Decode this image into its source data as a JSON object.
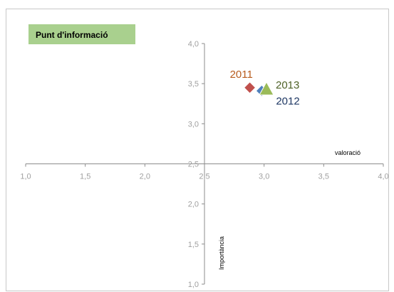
{
  "chart_data": {
    "type": "scatter",
    "title": "Punt d'informació",
    "xlabel": "valoració",
    "ylabel": "Importància",
    "xlim": [
      1.0,
      4.0
    ],
    "ylim": [
      1.0,
      4.0
    ],
    "x_ticks": [
      "1,0",
      "1,5",
      "2,0",
      "2,5",
      "3,0",
      "3,5",
      "4,0"
    ],
    "y_ticks": [
      "1,0",
      "1,5",
      "2,0",
      "2,5",
      "3,0",
      "3,5",
      "4,0"
    ],
    "axis_cross": [
      2.5,
      2.5
    ],
    "grid": false,
    "series": [
      {
        "name": "2011",
        "x": 2.88,
        "y": 3.45,
        "marker": "diamond",
        "color": "#c0504d",
        "label_color": "#b85c1e"
      },
      {
        "name": "2012",
        "x": 2.98,
        "y": 3.41,
        "marker": "diamond",
        "color": "#4f81bd",
        "label_color": "#1f3864"
      },
      {
        "name": "2013",
        "x": 3.02,
        "y": 3.43,
        "marker": "triangle",
        "color": "#9bbb59",
        "label_color": "#4f6228"
      }
    ],
    "title_box_color": "#a9d08e"
  }
}
